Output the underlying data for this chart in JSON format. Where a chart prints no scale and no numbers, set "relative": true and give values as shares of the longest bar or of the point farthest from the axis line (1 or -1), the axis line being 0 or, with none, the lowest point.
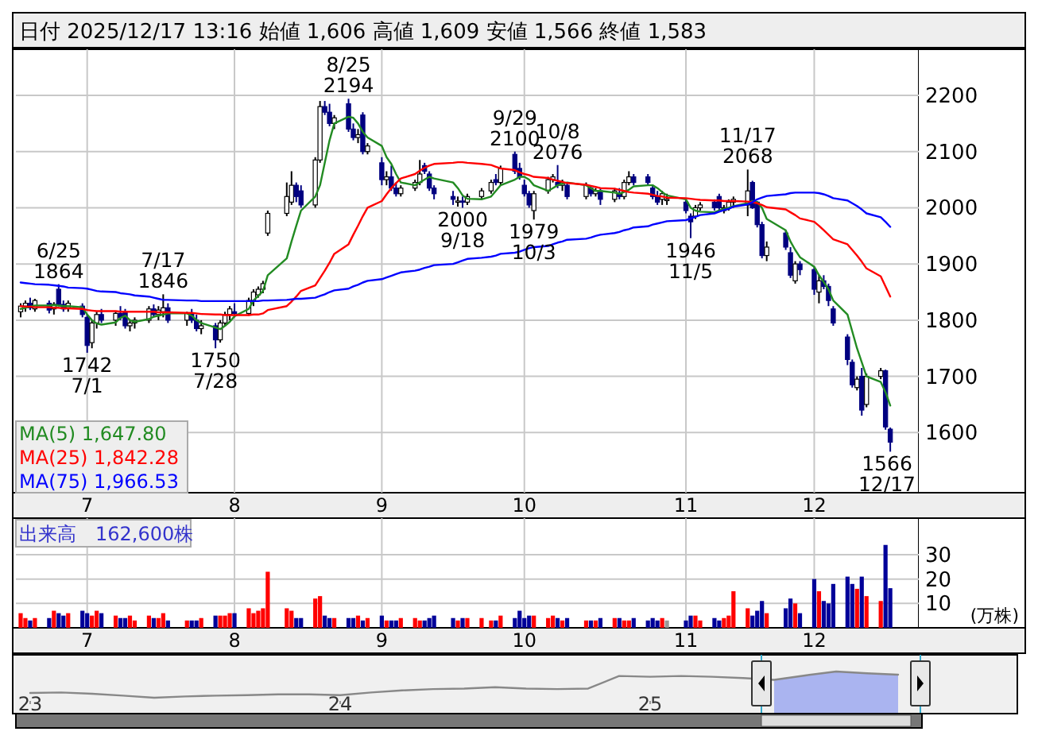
{
  "chart_data": [
    {
      "type": "candlestick",
      "title": "日付 2025/12/17 13:16 始値 1,606 高値 1,609 安値 1,566 終値 1,583",
      "x": [
        "2025-06-17",
        "2025-06-18",
        "2025-06-19",
        "2025-06-20",
        "2025-06-23",
        "2025-06-24",
        "2025-06-25",
        "2025-06-26",
        "2025-06-27",
        "2025-06-30",
        "2025-07-01",
        "2025-07-02",
        "2025-07-03",
        "2025-07-04",
        "2025-07-07",
        "2025-07-08",
        "2025-07-09",
        "2025-07-10",
        "2025-07-11",
        "2025-07-14",
        "2025-07-15",
        "2025-07-16",
        "2025-07-17",
        "2025-07-18",
        "2025-07-22",
        "2025-07-23",
        "2025-07-24",
        "2025-07-25",
        "2025-07-28",
        "2025-07-29",
        "2025-07-30",
        "2025-07-31",
        "2025-08-01",
        "2025-08-04",
        "2025-08-05",
        "2025-08-06",
        "2025-08-07",
        "2025-08-08",
        "2025-08-12",
        "2025-08-13",
        "2025-08-14",
        "2025-08-15",
        "2025-08-18",
        "2025-08-19",
        "2025-08-20",
        "2025-08-21",
        "2025-08-22",
        "2025-08-25",
        "2025-08-26",
        "2025-08-27",
        "2025-08-28",
        "2025-08-29",
        "2025-09-01",
        "2025-09-02",
        "2025-09-03",
        "2025-09-04",
        "2025-09-05",
        "2025-09-08",
        "2025-09-09",
        "2025-09-10",
        "2025-09-11",
        "2025-09-12",
        "2025-09-16",
        "2025-09-17",
        "2025-09-18",
        "2025-09-19",
        "2025-09-22",
        "2025-09-24",
        "2025-09-25",
        "2025-09-26",
        "2025-09-29",
        "2025-09-30",
        "2025-10-01",
        "2025-10-02",
        "2025-10-03",
        "2025-10-06",
        "2025-10-07",
        "2025-10-08",
        "2025-10-09",
        "2025-10-10",
        "2025-10-14",
        "2025-10-15",
        "2025-10-16",
        "2025-10-17",
        "2025-10-20",
        "2025-10-21",
        "2025-10-22",
        "2025-10-23",
        "2025-10-24",
        "2025-10-27",
        "2025-10-28",
        "2025-10-29",
        "2025-10-30",
        "2025-10-31",
        "2025-11-04",
        "2025-11-05",
        "2025-11-06",
        "2025-11-07",
        "2025-11-10",
        "2025-11-11",
        "2025-11-12",
        "2025-11-13",
        "2025-11-14",
        "2025-11-17",
        "2025-11-18",
        "2025-11-19",
        "2025-11-20",
        "2025-11-21",
        "2025-11-25",
        "2025-11-26",
        "2025-11-27",
        "2025-11-28",
        "2025-12-01",
        "2025-12-02",
        "2025-12-03",
        "2025-12-04",
        "2025-12-05",
        "2025-12-08",
        "2025-12-09",
        "2025-12-10",
        "2025-12-11",
        "2025-12-12",
        "2025-12-15",
        "2025-12-16",
        "2025-12-17"
      ],
      "series": [
        {
          "type": "candlestick",
          "colors": [
            "#ffffff",
            "#ffffff",
            "#000080",
            "#ffffff",
            "#000080",
            "#ffffff",
            "#000080",
            "#000080",
            "#ffffff",
            "#000080",
            "#000080",
            "#ffffff",
            "#ffffff",
            "#000080",
            "#ffffff",
            "#000080",
            "#000080",
            "#ffffff",
            "#ffffff",
            "#ffffff",
            "#000080",
            "#ffffff",
            "#ffffff",
            "#000080",
            "#ffffff",
            "#000080",
            "#000080",
            "#ffffff",
            "#000080",
            "#ffffff",
            "#ffffff",
            "#ffffff",
            "#000080",
            "#ffffff",
            "#ffffff",
            "#ffffff",
            "#ffffff",
            "#ffffff",
            "#ffffff",
            "#ffffff",
            "#000080",
            "#000080",
            "#ffffff",
            "#ffffff",
            "#000080",
            "#000080",
            "#ffffff",
            "#000080",
            "#000080",
            "#ffffff",
            "#000080",
            "#ffffff",
            "#000080",
            "#ffffff",
            "#000080",
            "#000080",
            "#ffffff",
            "#ffffff",
            "#ffffff",
            "#000080",
            "#000080",
            "#000080",
            "#000080",
            "#ffffff",
            "#000080",
            "#ffffff",
            "#ffffff",
            "#ffffff",
            "#000080",
            "#ffffff",
            "#000080",
            "#000080",
            "#000080",
            "#000080",
            "#ffffff",
            "#ffffff",
            "#ffffff",
            "#000080",
            "#ffffff",
            "#000080",
            "#ffffff",
            "#000080",
            "#ffffff",
            "#000080",
            "#ffffff",
            "#000080",
            "#ffffff",
            "#ffffff",
            "#000080",
            "#000080",
            "#000080",
            "#000080",
            "#ffffff",
            "#ffffff",
            "#000080",
            "#000080",
            "#ffffff",
            "#ffffff",
            "#000080",
            "#000080",
            "#ffffff",
            "#ffffff",
            "#ffffff",
            "#ffffff",
            "#000080",
            "#000080",
            "#000080",
            "#ffffff",
            "#000080",
            "#000080",
            "#ffffff",
            "#000080",
            "#000080",
            "#ffffff",
            "#000080",
            "#000080",
            "#000080",
            "#000080",
            "#000080",
            "#ffffff",
            "#000080",
            "#ffffff",
            "#ffffff",
            "#000080",
            "#000080"
          ],
          "ohlc": [
            [
              1815,
              1830,
              1805,
              1825
            ],
            [
              1825,
              1835,
              1815,
              1830
            ],
            [
              1830,
              1840,
              1818,
              1822
            ],
            [
              1820,
              1838,
              1815,
              1835
            ],
            [
              1830,
              1835,
              1812,
              1818
            ],
            [
              1820,
              1832,
              1810,
              1828
            ],
            [
              1855,
              1864,
              1825,
              1828
            ],
            [
              1828,
              1835,
              1815,
              1820
            ],
            [
              1822,
              1835,
              1815,
              1830
            ],
            [
              1825,
              1830,
              1805,
              1810
            ],
            [
              1805,
              1810,
              1742,
              1755
            ],
            [
              1760,
              1800,
              1750,
              1795
            ],
            [
              1795,
              1815,
              1785,
              1810
            ],
            [
              1810,
              1820,
              1795,
              1800
            ],
            [
              1800,
              1815,
              1790,
              1812
            ],
            [
              1812,
              1825,
              1800,
              1805
            ],
            [
              1815,
              1820,
              1785,
              1790
            ],
            [
              1790,
              1800,
              1780,
              1795
            ],
            [
              1795,
              1805,
              1785,
              1800
            ],
            [
              1800,
              1825,
              1795,
              1820
            ],
            [
              1820,
              1828,
              1805,
              1810
            ],
            [
              1810,
              1825,
              1800,
              1818
            ],
            [
              1815,
              1846,
              1805,
              1822
            ],
            [
              1822,
              1830,
              1795,
              1800
            ],
            [
              1800,
              1815,
              1790,
              1812
            ],
            [
              1812,
              1820,
              1795,
              1800
            ],
            [
              1800,
              1810,
              1780,
              1785
            ],
            [
              1785,
              1800,
              1775,
              1790
            ],
            [
              1790,
              1795,
              1750,
              1765
            ],
            [
              1765,
              1800,
              1760,
              1795
            ],
            [
              1795,
              1815,
              1790,
              1810
            ],
            [
              1810,
              1825,
              1800,
              1820
            ],
            [
              1815,
              1830,
              1805,
              1812
            ],
            [
              1812,
              1840,
              1808,
              1835
            ],
            [
              1835,
              1855,
              1825,
              1850
            ],
            [
              1845,
              1860,
              1840,
              1855
            ],
            [
              1855,
              1870,
              1848,
              1865
            ],
            [
              1955,
              1995,
              1950,
              1990
            ],
            [
              1990,
              2045,
              1985,
              2020
            ],
            [
              2010,
              2065,
              2005,
              2040
            ],
            [
              2040,
              2045,
              2010,
              2020
            ],
            [
              2030,
              2040,
              2000,
              2005
            ],
            [
              2005,
              2090,
              2000,
              2085
            ],
            [
              2085,
              2190,
              2080,
              2180
            ],
            [
              2180,
              2190,
              2165,
              2170
            ],
            [
              2170,
              2185,
              2145,
              2150
            ],
            [
              2150,
              2165,
              2140,
              2160
            ],
            [
              2185,
              2194,
              2135,
              2140
            ],
            [
              2140,
              2150,
              2120,
              2125
            ],
            [
              2125,
              2140,
              2115,
              2130
            ],
            [
              2165,
              2170,
              2095,
              2100
            ],
            [
              2100,
              2115,
              2095,
              2110
            ],
            [
              2080,
              2090,
              2040,
              2050
            ],
            [
              2050,
              2065,
              2040,
              2055
            ],
            [
              2055,
              2075,
              2030,
              2035
            ],
            [
              2035,
              2045,
              2020,
              2025
            ],
            [
              2025,
              2040,
              2020,
              2035
            ],
            [
              2035,
              2050,
              2030,
              2045
            ],
            [
              2045,
              2085,
              2040,
              2060
            ],
            [
              2075,
              2080,
              2060,
              2065
            ],
            [
              2060,
              2065,
              2030,
              2035
            ],
            [
              2035,
              2040,
              2015,
              2025
            ],
            [
              2020,
              2030,
              2005,
              2015
            ],
            [
              2010,
              2020,
              2002,
              2012
            ],
            [
              2012,
              2020,
              2000,
              2010
            ],
            [
              2010,
              2025,
              2005,
              2020
            ],
            [
              2020,
              2035,
              2015,
              2030
            ],
            [
              2030,
              2050,
              2025,
              2045
            ],
            [
              2050,
              2060,
              2040,
              2045
            ],
            [
              2045,
              2075,
              2040,
              2070
            ],
            [
              2095,
              2100,
              2060,
              2065
            ],
            [
              2070,
              2080,
              2050,
              2055
            ],
            [
              2040,
              2050,
              2020,
              2025
            ],
            [
              2025,
              2030,
              2000,
              2005
            ],
            [
              1995,
              2030,
              1979,
              2025
            ],
            [
              2030,
              2055,
              2025,
              2050
            ],
            [
              2050,
              2060,
              2045,
              2055
            ],
            [
              2045,
              2076,
              2035,
              2040
            ],
            [
              2040,
              2050,
              2030,
              2045
            ],
            [
              2040,
              2045,
              2015,
              2020
            ],
            [
              2020,
              2045,
              2015,
              2040
            ],
            [
              2035,
              2040,
              2020,
              2025
            ],
            [
              2025,
              2035,
              2020,
              2030
            ],
            [
              2030,
              2035,
              2005,
              2015
            ],
            [
              2015,
              2035,
              2010,
              2030
            ],
            [
              2025,
              2035,
              2015,
              2020
            ],
            [
              2020,
              2050,
              2015,
              2045
            ],
            [
              2045,
              2065,
              2040,
              2055
            ],
            [
              2055,
              2060,
              2040,
              2045
            ],
            [
              2055,
              2060,
              2040,
              2045
            ],
            [
              2035,
              2040,
              2015,
              2020
            ],
            [
              2020,
              2030,
              2005,
              2010
            ],
            [
              2015,
              2030,
              2005,
              2025
            ],
            [
              2015,
              2025,
              2005,
              2015
            ],
            [
              2010,
              2015,
              1990,
              1995
            ],
            [
              1985,
              1990,
              1946,
              1975
            ],
            [
              1985,
              2005,
              1980,
              2000
            ],
            [
              2000,
              2010,
              1995,
              2005
            ],
            [
              2010,
              2015,
              1995,
              2000
            ],
            [
              2020,
              2025,
              1995,
              2000
            ],
            [
              1995,
              2005,
              1990,
              2000
            ],
            [
              2000,
              2015,
              1995,
              2010
            ],
            [
              2010,
              2020,
              2000,
              2015
            ],
            [
              2005,
              2068,
              1985,
              2030
            ],
            [
              2045,
              2048,
              1998,
              2000
            ],
            [
              2010,
              2012,
              1965,
              1970
            ],
            [
              1970,
              1975,
              1910,
              1915
            ],
            [
              1915,
              1940,
              1905,
              1930
            ],
            [
              1955,
              1960,
              1925,
              1930
            ],
            [
              1920,
              1930,
              1875,
              1880
            ],
            [
              1870,
              1905,
              1865,
              1900
            ],
            [
              1900,
              1905,
              1880,
              1890
            ],
            [
              1890,
              1895,
              1845,
              1855
            ],
            [
              1850,
              1880,
              1830,
              1870
            ],
            [
              1870,
              1880,
              1855,
              1860
            ],
            [
              1860,
              1865,
              1825,
              1835
            ],
            [
              1820,
              1825,
              1790,
              1795
            ],
            [
              1770,
              1775,
              1720,
              1730
            ],
            [
              1725,
              1730,
              1680,
              1685
            ],
            [
              1680,
              1700,
              1675,
              1695
            ],
            [
              1700,
              1715,
              1630,
              1640
            ],
            [
              1650,
              1705,
              1645,
              1700
            ],
            [
              1700,
              1715,
              1695,
              1710
            ],
            [
              1710,
              1712,
              1605,
              1610
            ],
            [
              1606,
              1609,
              1566,
              1583
            ]
          ]
        },
        {
          "type": "line",
          "name": "MA(5) 1,647.80",
          "color": "#228b22",
          "values": [
            1820,
            1822,
            1824,
            1826,
            1826,
            1827,
            1826,
            1825,
            1825,
            1823,
            1810,
            1800,
            1794,
            1792,
            1796,
            1804,
            1808,
            1800,
            1797,
            1802,
            1806,
            1808,
            1810,
            1812,
            1812,
            1808,
            1800,
            1795,
            1787,
            1784,
            1790,
            1797,
            1807,
            1820,
            1835,
            1843,
            1852,
            1880,
            1910,
            1940,
            1968,
            1995,
            2020,
            2040,
            2080,
            2120,
            2150,
            2162,
            2160,
            2150,
            2135,
            2125,
            2110,
            2090,
            2078,
            2060,
            2045,
            2040,
            2045,
            2050,
            2055,
            2052,
            2045,
            2035,
            2022,
            2016,
            2015,
            2020,
            2030,
            2040,
            2050,
            2055,
            2055,
            2050,
            2040,
            2030,
            2035,
            2040,
            2043,
            2045,
            2040,
            2035,
            2030,
            2030,
            2027,
            2025,
            2028,
            2032,
            2038,
            2040,
            2040,
            2035,
            2028,
            2022,
            2015,
            2000,
            1995,
            1993,
            1992,
            1995,
            1998,
            2000,
            2003,
            2008,
            2012,
            2010,
            2000,
            1980,
            1960,
            1940,
            1925,
            1912,
            1895,
            1880,
            1868,
            1855,
            1835,
            1810,
            1780,
            1750,
            1725,
            1700,
            1690,
            1672,
            1648
          ]
        },
        {
          "type": "line",
          "name": "MA(25) 1,842.28",
          "color": "#ff0000",
          "values": [
            1825,
            1824,
            1824,
            1823,
            1823,
            1822,
            1822,
            1821,
            1821,
            1820,
            1818,
            1817,
            1816,
            1816,
            1816,
            1815,
            1815,
            1815,
            1815,
            1815,
            1815,
            1814,
            1814,
            1814,
            1813,
            1813,
            1812,
            1811,
            1810,
            1810,
            1809,
            1809,
            1809,
            1809,
            1810,
            1810,
            1812,
            1818,
            1825,
            1833,
            1842,
            1852,
            1862,
            1875,
            1888,
            1902,
            1918,
            1935,
            1952,
            1968,
            1985,
            2000,
            2012,
            2024,
            2035,
            2044,
            2052,
            2060,
            2066,
            2071,
            2075,
            2078,
            2080,
            2081,
            2081,
            2080,
            2078,
            2076,
            2073,
            2070,
            2067,
            2063,
            2060,
            2058,
            2055,
            2053,
            2050,
            2048,
            2046,
            2044,
            2041,
            2039,
            2037,
            2035,
            2034,
            2032,
            2030,
            2028,
            2027,
            2025,
            2023,
            2021,
            2020,
            2018,
            2017,
            2016,
            2015,
            2014,
            2013,
            2013,
            2012,
            2012,
            2012,
            2011,
            2010,
            2008,
            2005,
            2001,
            1997,
            1992,
            1987,
            1981,
            1975,
            1968,
            1960,
            1952,
            1944,
            1935,
            1925,
            1915,
            1904,
            1892,
            1878,
            1860,
            1842
          ]
        },
        {
          "type": "line",
          "name": "MA(75) 1,966.53",
          "color": "#0000ff",
          "values": [
            1867,
            1866,
            1865,
            1864,
            1863,
            1862,
            1861,
            1860,
            1858,
            1857,
            1856,
            1854,
            1852,
            1851,
            1850,
            1848,
            1847,
            1846,
            1844,
            1842,
            1840,
            1838,
            1836,
            1836,
            1835,
            1835,
            1835,
            1834,
            1834,
            1834,
            1834,
            1834,
            1834,
            1834,
            1834,
            1834,
            1835,
            1835,
            1836,
            1837,
            1838,
            1838,
            1840,
            1843,
            1846,
            1850,
            1853,
            1856,
            1860,
            1863,
            1867,
            1870,
            1873,
            1876,
            1879,
            1882,
            1885,
            1888,
            1890,
            1893,
            1895,
            1898,
            1900,
            1903,
            1906,
            1909,
            1911,
            1913,
            1915,
            1918,
            1920,
            1922,
            1925,
            1928,
            1930,
            1932,
            1935,
            1938,
            1940,
            1943,
            1945,
            1947,
            1950,
            1952,
            1955,
            1957,
            1960,
            1962,
            1965,
            1967,
            1970,
            1972,
            1974,
            1976,
            1978,
            1981,
            1984,
            1987,
            1990,
            1993,
            1996,
            1998,
            2002,
            2006,
            2010,
            2015,
            2018,
            2021,
            2024,
            2026,
            2027,
            2027,
            2027,
            2026,
            2024,
            2021,
            2017,
            2013,
            2008,
            2003,
            1997,
            1990,
            1983,
            1975,
            1966
          ]
        }
      ],
      "xlim": [
        "2025-06-16",
        "2025-12-23"
      ],
      "ylim": [
        1493,
        2282
      ],
      "yticks": [
        1600,
        1700,
        1800,
        1900,
        2000,
        2100,
        2200
      ],
      "xticks": [
        {
          "value": "2025-07-01",
          "label": "7"
        },
        {
          "value": "2025-08-01",
          "label": "8"
        },
        {
          "value": "2025-09-01",
          "label": "9"
        },
        {
          "value": "2025-10-01",
          "label": "10"
        },
        {
          "value": "2025-11-04",
          "label": "11"
        },
        {
          "value": "2025-12-01",
          "label": "12"
        }
      ],
      "grid": true,
      "legend": "bottom left",
      "annotations": [
        {
          "text": "6/25\n1864",
          "x": "2025-06-25",
          "y": 1864
        },
        {
          "text": "1742\n7/1",
          "x": "2025-07-01",
          "y": 1742
        },
        {
          "text": "7/17\n1846",
          "x": "2025-07-17",
          "y": 1846
        },
        {
          "text": "1750\n7/28",
          "x": "2025-07-28",
          "y": 1750
        },
        {
          "text": "8/25\n2194",
          "x": "2025-08-25",
          "y": 2194
        },
        {
          "text": "2000\n9/18",
          "x": "2025-09-18",
          "y": 2000
        },
        {
          "text": "9/29\n2100",
          "x": "2025-09-29",
          "y": 2100
        },
        {
          "text": "1979\n10/3",
          "x": "2025-10-03",
          "y": 1979
        },
        {
          "text": "10/8\n2076",
          "x": "2025-10-08",
          "y": 2076
        },
        {
          "text": "1946\n11/5",
          "x": "2025-11-05",
          "y": 1946
        },
        {
          "text": "11/17\n2068",
          "x": "2025-11-17",
          "y": 2068
        },
        {
          "text": "1566\n12/17",
          "x": "2025-12-17",
          "y": 1566
        }
      ]
    },
    {
      "type": "bar",
      "title": "出来高　162,600株",
      "ylabel": "(万株)",
      "x": [
        "2025-06-17",
        "2025-06-18",
        "2025-06-19",
        "2025-06-20",
        "2025-06-23",
        "2025-06-24",
        "2025-06-25",
        "2025-06-26",
        "2025-06-27",
        "2025-06-30",
        "2025-07-01",
        "2025-07-02",
        "2025-07-03",
        "2025-07-04",
        "2025-07-07",
        "2025-07-08",
        "2025-07-09",
        "2025-07-10",
        "2025-07-11",
        "2025-07-14",
        "2025-07-15",
        "2025-07-16",
        "2025-07-17",
        "2025-07-18",
        "2025-07-22",
        "2025-07-23",
        "2025-07-24",
        "2025-07-25",
        "2025-07-28",
        "2025-07-29",
        "2025-07-30",
        "2025-07-31",
        "2025-08-01",
        "2025-08-04",
        "2025-08-05",
        "2025-08-06",
        "2025-08-07",
        "2025-08-08",
        "2025-08-12",
        "2025-08-13",
        "2025-08-14",
        "2025-08-15",
        "2025-08-18",
        "2025-08-19",
        "2025-08-20",
        "2025-08-21",
        "2025-08-22",
        "2025-08-25",
        "2025-08-26",
        "2025-08-27",
        "2025-08-28",
        "2025-08-29",
        "2025-09-01",
        "2025-09-02",
        "2025-09-03",
        "2025-09-04",
        "2025-09-05",
        "2025-09-08",
        "2025-09-09",
        "2025-09-10",
        "2025-09-11",
        "2025-09-12",
        "2025-09-16",
        "2025-09-17",
        "2025-09-18",
        "2025-09-19",
        "2025-09-22",
        "2025-09-24",
        "2025-09-25",
        "2025-09-26",
        "2025-09-29",
        "2025-09-30",
        "2025-10-01",
        "2025-10-02",
        "2025-10-03",
        "2025-10-06",
        "2025-10-07",
        "2025-10-08",
        "2025-10-09",
        "2025-10-10",
        "2025-10-14",
        "2025-10-15",
        "2025-10-16",
        "2025-10-17",
        "2025-10-20",
        "2025-10-21",
        "2025-10-22",
        "2025-10-23",
        "2025-10-24",
        "2025-10-27",
        "2025-10-28",
        "2025-10-29",
        "2025-10-30",
        "2025-10-31",
        "2025-11-04",
        "2025-11-05",
        "2025-11-06",
        "2025-11-07",
        "2025-11-10",
        "2025-11-11",
        "2025-11-12",
        "2025-11-13",
        "2025-11-14",
        "2025-11-17",
        "2025-11-18",
        "2025-11-19",
        "2025-11-20",
        "2025-11-21",
        "2025-11-25",
        "2025-11-26",
        "2025-11-27",
        "2025-11-28",
        "2025-12-01",
        "2025-12-02",
        "2025-12-03",
        "2025-12-04",
        "2025-12-05",
        "2025-12-08",
        "2025-12-09",
        "2025-12-10",
        "2025-12-11",
        "2025-12-12",
        "2025-12-15",
        "2025-12-16",
        "2025-12-17"
      ],
      "values": [
        6,
        4,
        3,
        4,
        4,
        7,
        6,
        5,
        6,
        7,
        6,
        5,
        7,
        6,
        5,
        4,
        4,
        5,
        3,
        5,
        4,
        4,
        6,
        3,
        3,
        3,
        3,
        4,
        5,
        5,
        5,
        6,
        6,
        8,
        6,
        7,
        8,
        23,
        8,
        7,
        4,
        4,
        12,
        13,
        5,
        4,
        4,
        4,
        4,
        5,
        3,
        4,
        5,
        3,
        3,
        3,
        4,
        4,
        3,
        3,
        4,
        5,
        4,
        3,
        4,
        4,
        4,
        3,
        3,
        5,
        4,
        7,
        4,
        5,
        5,
        4,
        5,
        4,
        3,
        4,
        3,
        3,
        3,
        4,
        4,
        4,
        3,
        3,
        4,
        3,
        4,
        3,
        4,
        3,
        3,
        5,
        5,
        3,
        4,
        3,
        4,
        5,
        15,
        8,
        5,
        7,
        11,
        6,
        8,
        12,
        10,
        6,
        20,
        15,
        11,
        10,
        18,
        21,
        18,
        16,
        21,
        13,
        11,
        34,
        16.26
      ],
      "colors": [
        "#ff0000",
        "#ff0000",
        "#000099",
        "#ff0000",
        "#000099",
        "#ff0000",
        "#000099",
        "#000099",
        "#ff0000",
        "#000099",
        "#000099",
        "#ff0000",
        "#ff0000",
        "#000099",
        "#ff0000",
        "#000099",
        "#000099",
        "#ff0000",
        "#ff0000",
        "#ff0000",
        "#000099",
        "#ff0000",
        "#ff0000",
        "#000099",
        "#ff0000",
        "#000099",
        "#000099",
        "#ff0000",
        "#000099",
        "#ff0000",
        "#ff0000",
        "#ff0000",
        "#000099",
        "#ff0000",
        "#ff0000",
        "#ff0000",
        "#ff0000",
        "#ff0000",
        "#ff0000",
        "#ff0000",
        "#000099",
        "#000099",
        "#ff0000",
        "#ff0000",
        "#000099",
        "#000099",
        "#ff0000",
        "#000099",
        "#000099",
        "#ff0000",
        "#000099",
        "#ff0000",
        "#000099",
        "#ff0000",
        "#000099",
        "#000099",
        "#ff0000",
        "#ff0000",
        "#ff0000",
        "#000099",
        "#000099",
        "#000099",
        "#000099",
        "#ff0000",
        "#000099",
        "#ff0000",
        "#ff0000",
        "#ff0000",
        "#000099",
        "#ff0000",
        "#000099",
        "#000099",
        "#000099",
        "#000099",
        "#ff0000",
        "#ff0000",
        "#ff0000",
        "#000099",
        "#ff0000",
        "#000099",
        "#ff0000",
        "#000099",
        "#ff0000",
        "#000099",
        "#ff0000",
        "#000099",
        "#ff0000",
        "#ff0000",
        "#000099",
        "#000099",
        "#000099",
        "#000099",
        "#ff0000",
        "#999999",
        "#000099",
        "#000099",
        "#ff0000",
        "#ff0000",
        "#000099",
        "#000099",
        "#ff0000",
        "#ff0000",
        "#ff0000",
        "#ff0000",
        "#000099",
        "#000099",
        "#000099",
        "#ff0000",
        "#000099",
        "#000099",
        "#ff0000",
        "#000099",
        "#000099",
        "#ff0000",
        "#000099",
        "#000099",
        "#000099",
        "#000099",
        "#000099",
        "#ff0000",
        "#000099",
        "#ff0000",
        "#ff0000",
        "#000099",
        "#000099"
      ],
      "xlim": [
        "2025-06-16",
        "2025-12-23"
      ],
      "ylim": [
        0,
        45
      ],
      "yticks": [
        10,
        20,
        30
      ],
      "xticks": [
        {
          "value": "2025-07-01",
          "label": "7"
        },
        {
          "value": "2025-08-01",
          "label": "8"
        },
        {
          "value": "2025-09-01",
          "label": "9"
        },
        {
          "value": "2025-10-01",
          "label": "10"
        },
        {
          "value": "2025-11-04",
          "label": "11"
        },
        {
          "value": "2025-12-01",
          "label": "12"
        }
      ],
      "grid": true
    },
    {
      "type": "line",
      "relative": true,
      "categories": [
        "23",
        null,
        null,
        null,
        null,
        null,
        null,
        null,
        null,
        null,
        "24",
        null,
        null,
        null,
        null,
        null,
        null,
        null,
        null,
        null,
        "25",
        null,
        null,
        null,
        null,
        null,
        null,
        null,
        null
      ],
      "series": [
        {
          "color": "#888888",
          "values": [
            0.18,
            0.2,
            0.15,
            0.08,
            0,
            0.05,
            0.08,
            0.1,
            0.13,
            0.13,
            0.1,
            0.2,
            0.28,
            0.33,
            0.35,
            0.4,
            0.35,
            0.33,
            0.35,
            0.83,
            0.8,
            0.83,
            0.8,
            0.75,
            0.68,
            0.85,
            1,
            0.93,
            0.88
          ]
        },
        {
          "type": "area",
          "color": "#aab4f0",
          "values": [
            null,
            null,
            null,
            null,
            null,
            null,
            null,
            null,
            null,
            null,
            null,
            null,
            null,
            null,
            null,
            null,
            null,
            null,
            null,
            null,
            null,
            null,
            null,
            null,
            0.68,
            0.85,
            1,
            0.93,
            0.88
          ]
        }
      ]
    }
  ]
}
